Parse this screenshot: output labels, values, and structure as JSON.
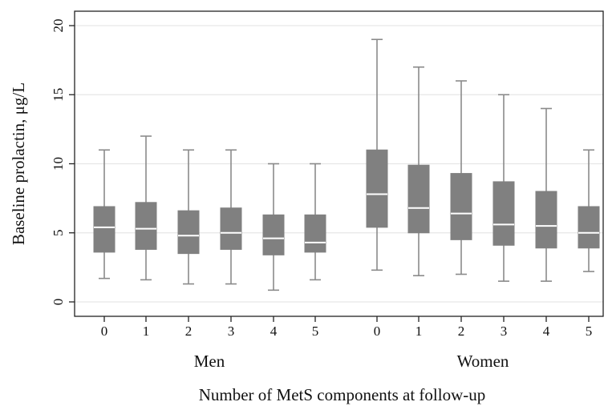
{
  "chart_data": {
    "type": "box",
    "title": "",
    "xlabel": "Number of MetS components at follow-up",
    "ylabel": "Baseline prolactin, μg/L",
    "ylim": [
      0,
      20
    ],
    "yticks": [
      0,
      5,
      10,
      15,
      20
    ],
    "ytick_labels": [
      "0",
      "5",
      "10",
      "15",
      "20"
    ],
    "grid": true,
    "legend": "none",
    "colors": {
      "box_fill": "#808080",
      "whisker": "#8a8a8a",
      "median": "#ffffff",
      "grid": "#e6e6e6",
      "frame": "#222222"
    },
    "groups": [
      {
        "name": "Men",
        "categories": [
          "0",
          "1",
          "2",
          "3",
          "4",
          "5"
        ],
        "boxes": [
          {
            "min": 1.7,
            "q1": 3.6,
            "median": 5.4,
            "q3": 6.9,
            "max": 11.0
          },
          {
            "min": 1.6,
            "q1": 3.8,
            "median": 5.3,
            "q3": 7.2,
            "max": 12.0
          },
          {
            "min": 1.3,
            "q1": 3.5,
            "median": 4.8,
            "q3": 6.6,
            "max": 11.0
          },
          {
            "min": 1.3,
            "q1": 3.8,
            "median": 5.0,
            "q3": 6.8,
            "max": 11.0
          },
          {
            "min": 0.85,
            "q1": 3.4,
            "median": 4.6,
            "q3": 6.3,
            "max": 10.0
          },
          {
            "min": 1.6,
            "q1": 3.6,
            "median": 4.3,
            "q3": 6.3,
            "max": 10.0
          }
        ]
      },
      {
        "name": "Women",
        "categories": [
          "0",
          "1",
          "2",
          "3",
          "4",
          "5"
        ],
        "boxes": [
          {
            "min": 2.3,
            "q1": 5.4,
            "median": 7.8,
            "q3": 11.0,
            "max": 19.0
          },
          {
            "min": 1.9,
            "q1": 5.0,
            "median": 6.8,
            "q3": 9.9,
            "max": 17.0
          },
          {
            "min": 2.0,
            "q1": 4.5,
            "median": 6.4,
            "q3": 9.3,
            "max": 16.0
          },
          {
            "min": 1.5,
            "q1": 4.1,
            "median": 5.6,
            "q3": 8.7,
            "max": 15.0
          },
          {
            "min": 1.5,
            "q1": 3.9,
            "median": 5.5,
            "q3": 8.0,
            "max": 14.0
          },
          {
            "min": 2.2,
            "q1": 3.9,
            "median": 5.0,
            "q3": 6.9,
            "max": 11.0
          }
        ]
      }
    ]
  }
}
